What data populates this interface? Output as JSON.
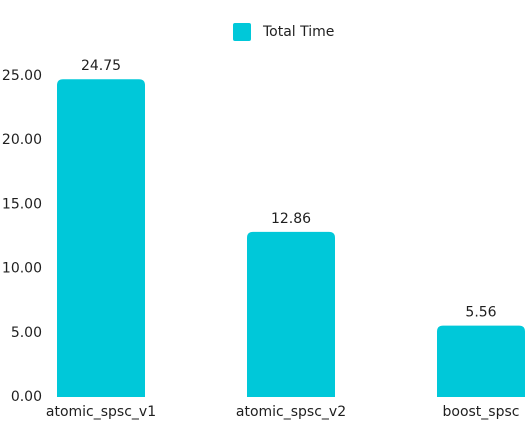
{
  "chart_data": {
    "type": "bar",
    "legend": "Total Time",
    "categories": [
      "atomic_spsc_v1",
      "atomic_spsc_v2",
      "boost_spsc"
    ],
    "values": [
      24.75,
      12.86,
      5.56
    ],
    "color": "#00c8d9",
    "ylim": [
      0,
      25
    ],
    "yticks": [
      {
        "value": 0,
        "label": "0.00"
      },
      {
        "value": 5,
        "label": "5.00"
      },
      {
        "value": 10,
        "label": "10.00"
      },
      {
        "value": 15,
        "label": "15.00"
      },
      {
        "value": 20,
        "label": "20.00"
      },
      {
        "value": 25,
        "label": "25.00"
      }
    ],
    "grid": false
  }
}
